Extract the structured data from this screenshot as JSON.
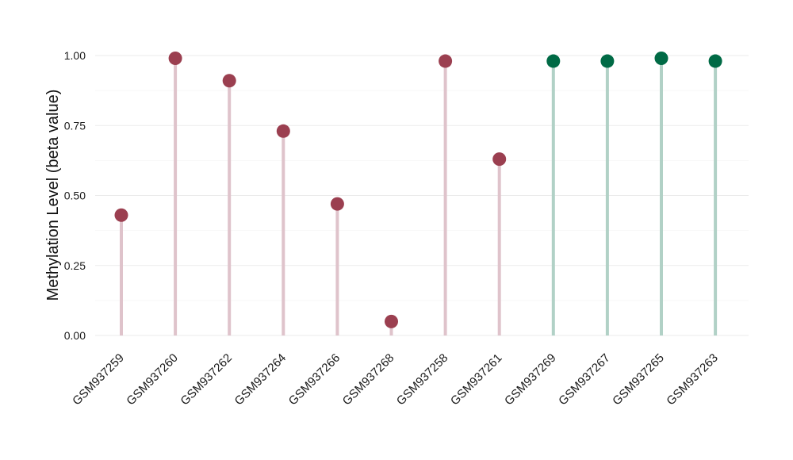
{
  "chart_data": {
    "type": "lollipop",
    "title": "",
    "xlabel": "",
    "ylabel": "Methylation Level (beta value)",
    "ylim": [
      0,
      1
    ],
    "yticks": [
      "0.00",
      "0.25",
      "0.50",
      "0.75",
      "1.00"
    ],
    "grid": true,
    "categories": [
      "GSM937259",
      "GSM937260",
      "GSM937262",
      "GSM937264",
      "GSM937266",
      "GSM937268",
      "GSM937258",
      "GSM937261",
      "GSM937269",
      "GSM937267",
      "GSM937265",
      "GSM937263"
    ],
    "values": [
      0.43,
      0.99,
      0.91,
      0.73,
      0.47,
      0.05,
      0.98,
      0.63,
      0.98,
      0.98,
      0.99,
      0.98
    ],
    "groups": [
      "a",
      "a",
      "a",
      "a",
      "a",
      "a",
      "a",
      "a",
      "b",
      "b",
      "b",
      "b"
    ],
    "colors": {
      "a": {
        "point": "#9b3f50",
        "stem": "#dfc3cb"
      },
      "b": {
        "point": "#006a45",
        "stem": "#b1d1c6"
      }
    },
    "grid_color": "#ebebeb"
  }
}
